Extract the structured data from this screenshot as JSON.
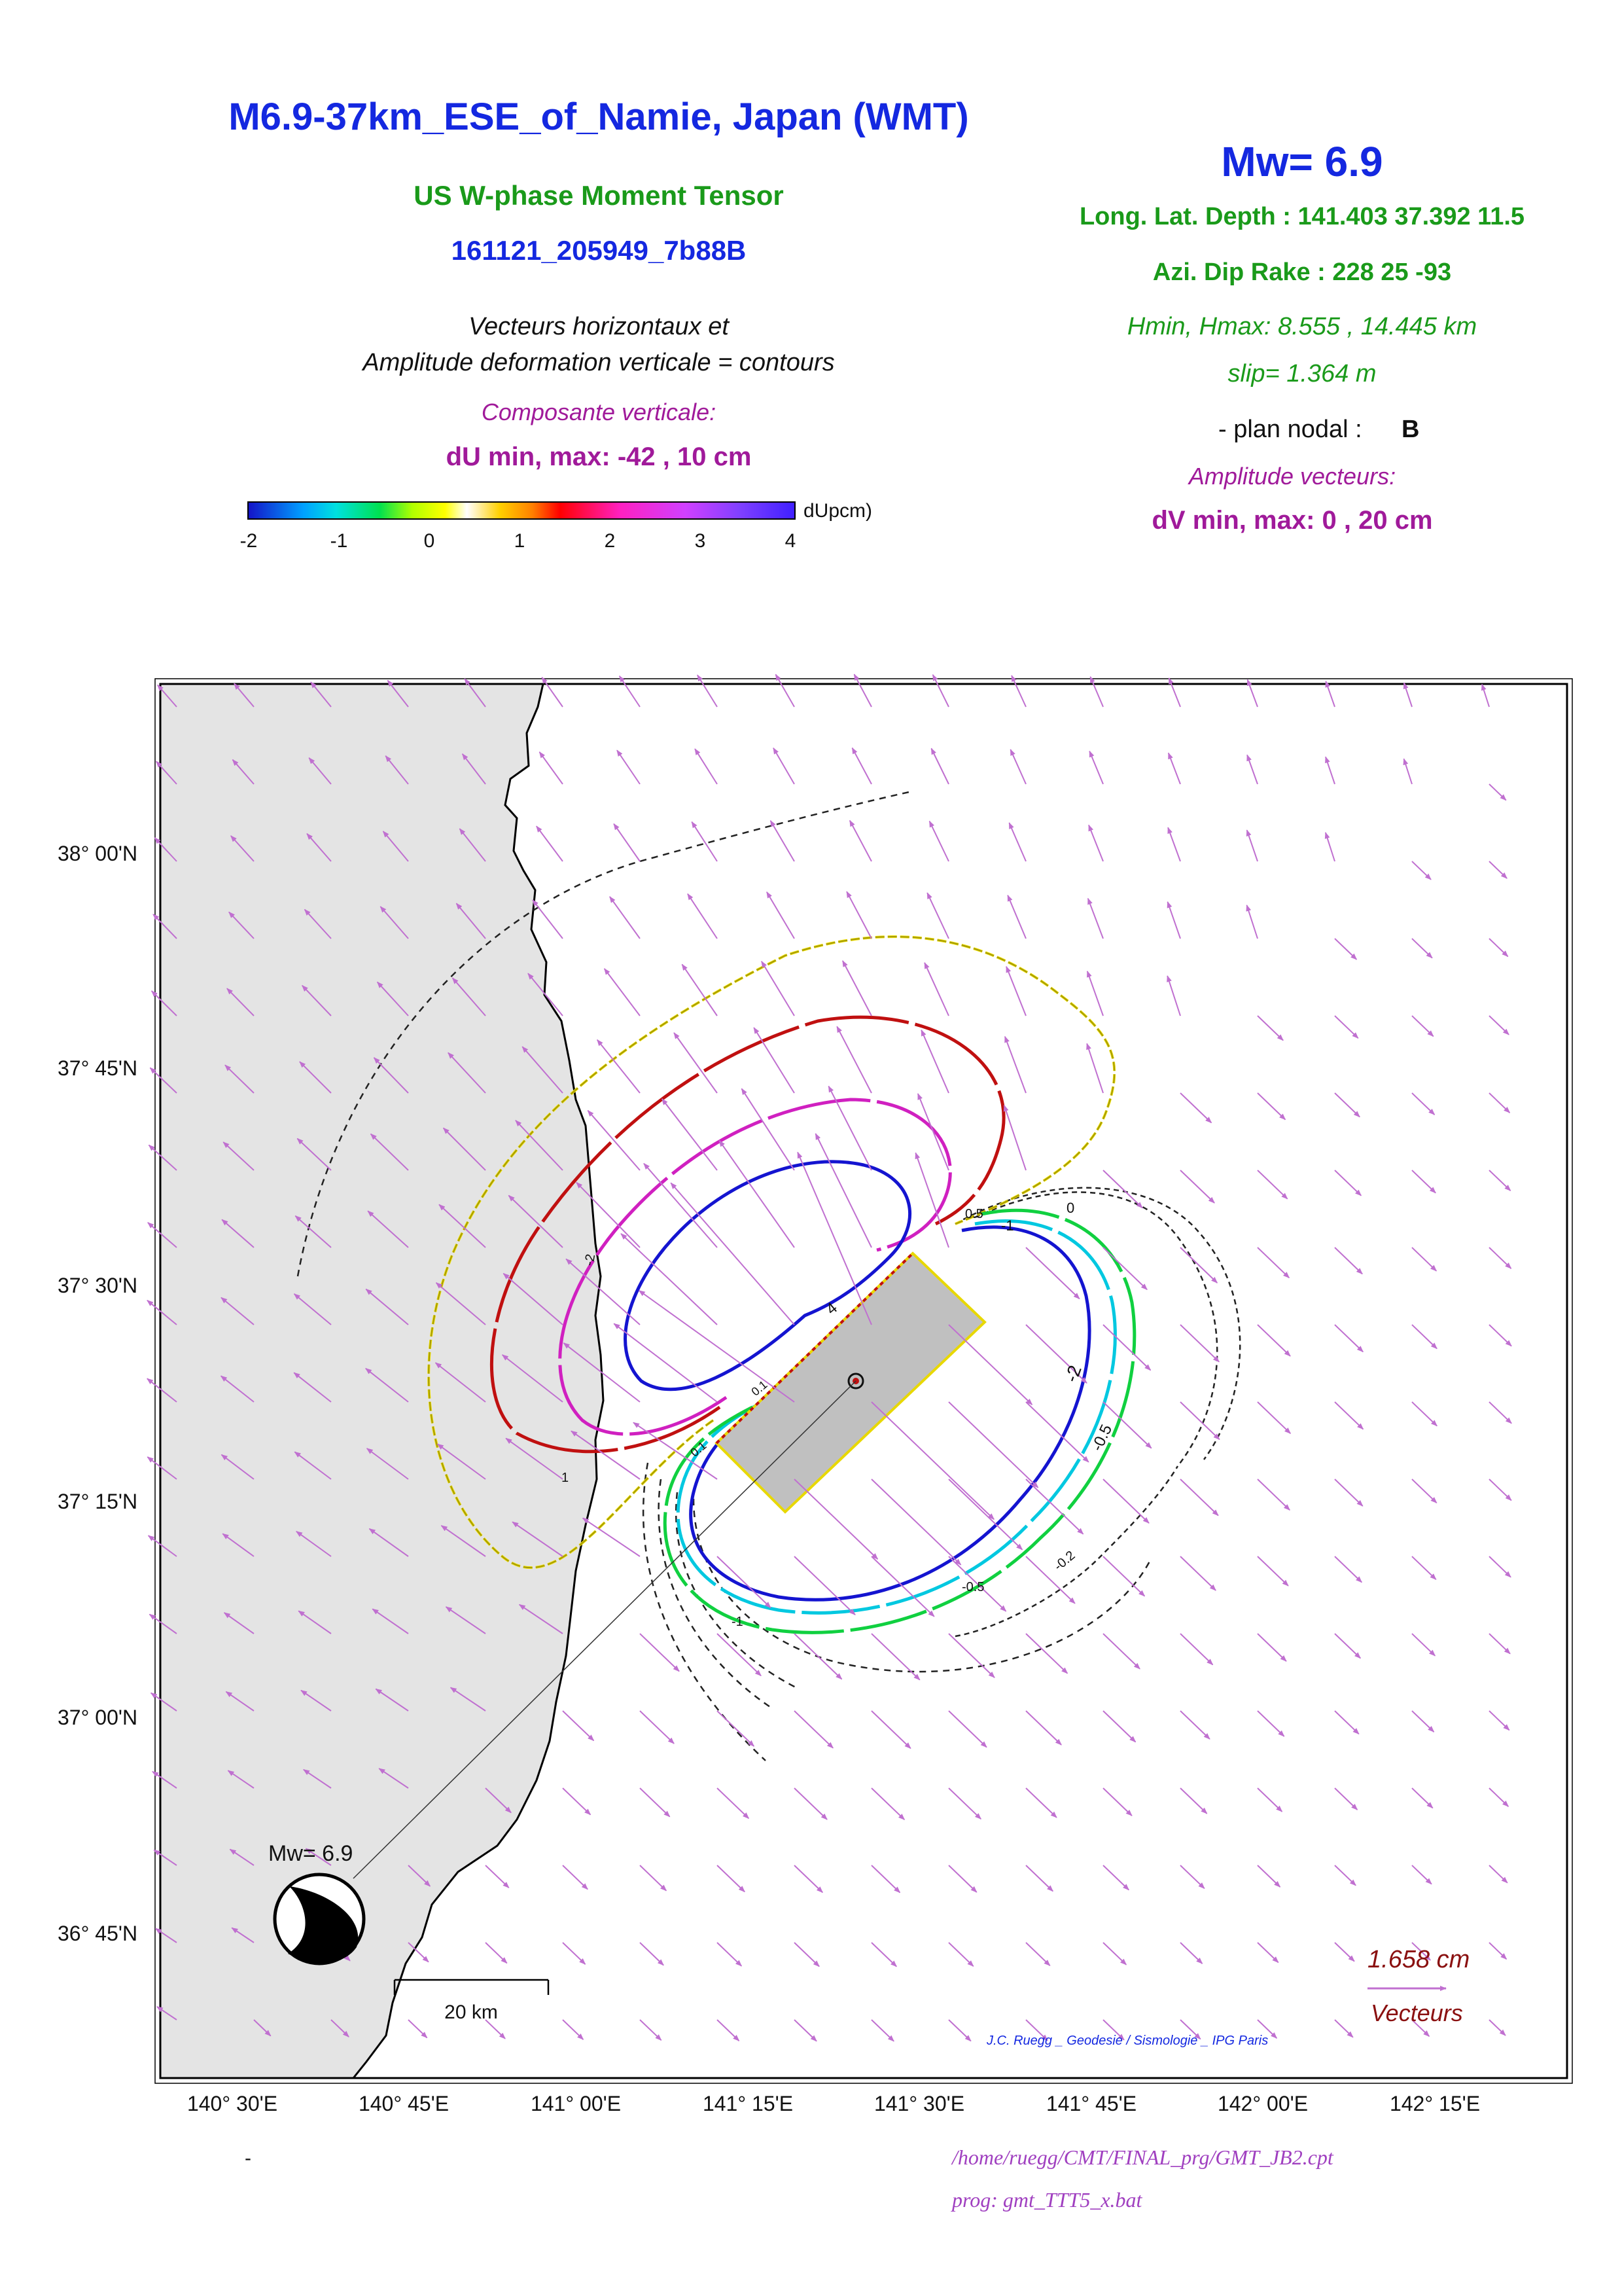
{
  "header": {
    "title": "M6.9-37km_ESE_of_Namie, Japan (WMT)",
    "subtitle": "US W-phase Moment Tensor",
    "event_id": "161121_205949_7b88B",
    "desc_line1": "Vecteurs horizontaux et",
    "desc_line2": "Amplitude deformation verticale = contours",
    "vertical_label": "Composante verticale:",
    "du_minmax": "dU min, max:  -42 , 10 cm"
  },
  "params": {
    "mw": "Mw= 6.9",
    "lonlatdepth": "Long. Lat. Depth : 141.403 37.392 11.5",
    "azi_dip_rake": "Azi.  Dip   Rake :  228 25 -93",
    "hmin_hmax": "Hmin, Hmax:  8.555 , 14.445 km",
    "slip": "slip= 1.364 m",
    "plan_nodal_label": "- plan nodal :",
    "plan_nodal_value": "B",
    "amp_vecteurs": "Amplitude vecteurs:",
    "dv_minmax": "dV min, max:  0 , 20 cm"
  },
  "colorbar": {
    "unit": "dUpcm)",
    "ticks": [
      "-2",
      "-1",
      "0",
      "1",
      "2",
      "3",
      "4"
    ],
    "colors": [
      "#1414c8",
      "#00c8ff",
      "#00e050",
      "#ffff00",
      "#ffffff",
      "#ff8000",
      "#ff0000",
      "#ff20c0",
      "#c040ff",
      "#4020ff"
    ]
  },
  "map": {
    "lat_labels": [
      "38° 00'N",
      "37° 45'N",
      "37° 30'N",
      "37° 15'N",
      "37° 00'N",
      "36° 45'N"
    ],
    "lon_labels": [
      "140° 30'E",
      "140° 45'E",
      "141° 00'E",
      "141° 15'E",
      "141° 30'E",
      "141° 45'E",
      "142° 00'E",
      "142° 15'E"
    ],
    "mw_label": "Mw= 6.9",
    "scale_label": "20 km",
    "vector_scale_value": "1.658  cm",
    "vector_scale_label": "Vecteurs",
    "credit": "J.C. Ruegg _ Geodesie / Sismologie _ IPG Paris",
    "contour_labels": [
      "-2",
      "-1",
      "-0.5",
      "-0.5",
      "-0.2",
      "0",
      "0.5",
      "-1",
      "1",
      "-2",
      "4",
      "0.1",
      "0.1"
    ],
    "land_color": "#e4e4e4",
    "fault_color": "#c0c0c0",
    "vector_color": "#c070d0"
  },
  "footer": {
    "dash": "-",
    "cpt_path": "/home/ruegg/CMT/FINAL_prg/GMT_JB2.cpt",
    "prog": "prog: gmt_TTT5_x.bat"
  }
}
